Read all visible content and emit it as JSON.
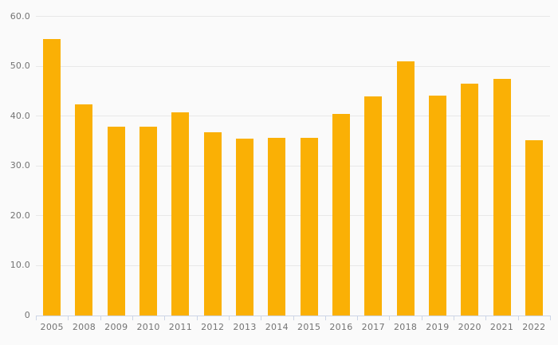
{
  "chart_data": {
    "type": "bar",
    "categories": [
      "2005",
      "2008",
      "2009",
      "2010",
      "2011",
      "2012",
      "2013",
      "2014",
      "2015",
      "2016",
      "2017",
      "2018",
      "2019",
      "2020",
      "2021",
      "2022"
    ],
    "values": [
      55.5,
      42.3,
      37.9,
      37.8,
      40.8,
      36.7,
      35.5,
      35.7,
      35.6,
      40.4,
      44.0,
      50.9,
      44.1,
      46.5,
      47.5,
      35.2
    ],
    "title": "",
    "xlabel": "",
    "ylabel": "",
    "ylim": [
      0,
      60
    ],
    "ytick_interval": 10,
    "yticks": [
      {
        "value": 0,
        "label": "0"
      },
      {
        "value": 10,
        "label": "10.0"
      },
      {
        "value": 20,
        "label": "20.0"
      },
      {
        "value": 30,
        "label": "30.0"
      },
      {
        "value": 40,
        "label": "40.0"
      },
      {
        "value": 50,
        "label": "50.0"
      },
      {
        "value": 60,
        "label": "60.0"
      }
    ],
    "grid": true,
    "legend": false,
    "colors": {
      "bar": "#FAB005",
      "background": "#FAFAFA",
      "gridline": "#E8E8E8",
      "axis_line": "#CCD5E6",
      "label_text": "#737373"
    }
  }
}
